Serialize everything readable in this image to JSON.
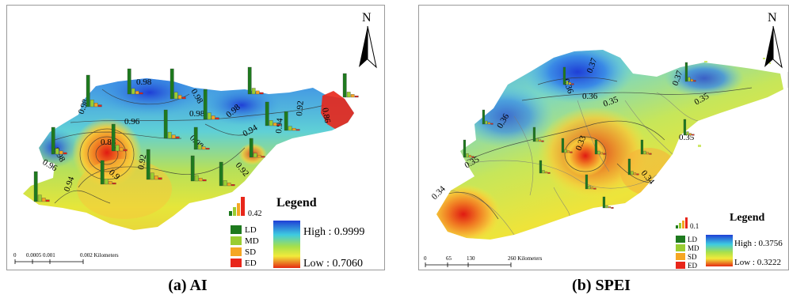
{
  "panels": [
    {
      "caption": "(a) AI",
      "north": "N",
      "legend_title": "Legend",
      "chart_scale_value": "0.42",
      "categories": [
        "LD",
        "MD",
        "SD",
        "ED"
      ],
      "gradient_high": "High : 0.9999",
      "gradient_low": "Low : 0.7060",
      "scalebar_labels": [
        "0",
        "0.0005 0.001",
        "0.002 Kilometers"
      ],
      "contour_labels": [
        "0.98",
        "0.98",
        "0.98",
        "0.98",
        "0.96",
        "0.98",
        "0.98",
        "0.92",
        "0.86",
        "0.94",
        "0.88",
        "0.98",
        "0.96",
        "0.9",
        "0.92",
        "0.94",
        "0.92",
        "0.94"
      ]
    },
    {
      "caption": "(b) SPEI",
      "north": "N",
      "legend_title": "Legend",
      "chart_scale_value": "0.1",
      "categories": [
        "LD",
        "MD",
        "SD",
        "ED"
      ],
      "gradient_high": "High : 0.3756",
      "gradient_low": "Low : 0.3222",
      "scalebar_labels": [
        "0",
        "65",
        "130",
        "260 Kilometers"
      ],
      "contour_labels": [
        "0.37",
        "0.36",
        "0.36",
        "0.35",
        "0.37",
        "0.35",
        "0.36",
        "0.33",
        "0.34",
        "0.35",
        "0.35",
        "0.34"
      ]
    }
  ],
  "colors": {
    "ld": "#1e7a1e",
    "md": "#9acd32",
    "sd": "#f5a623",
    "ed": "#e8261a",
    "high": "#1f3fd6",
    "mid": "#f2ea3a",
    "low": "#e52a12"
  },
  "icons": [
    "north-arrow-icon",
    "bar-chart-icon"
  ]
}
